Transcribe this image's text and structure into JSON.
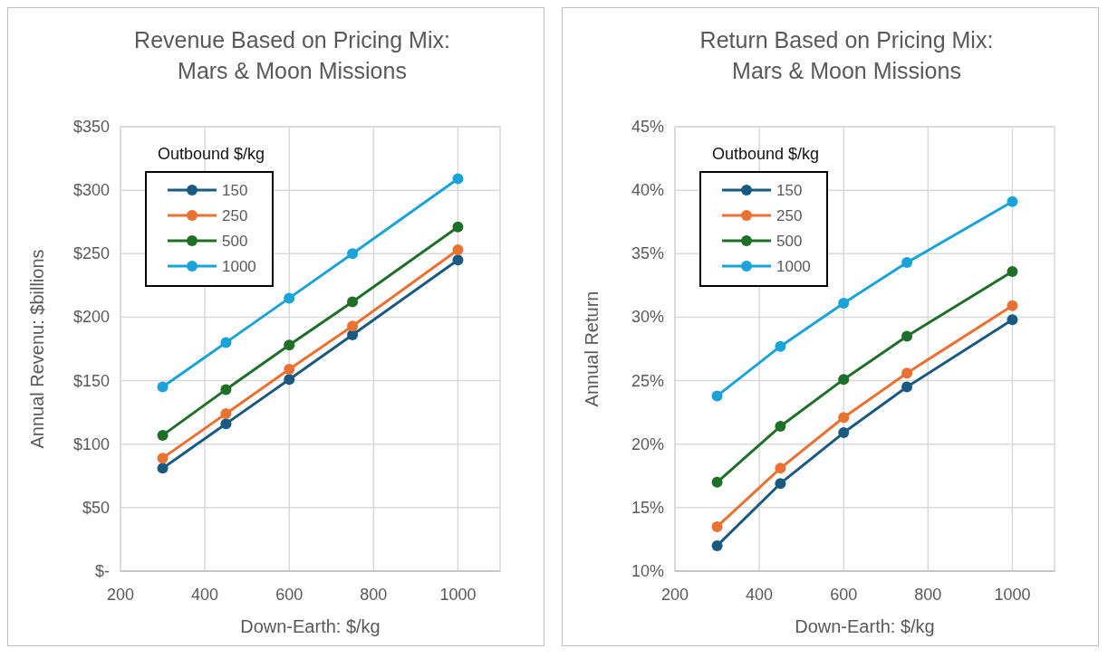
{
  "chart_data": [
    {
      "type": "line",
      "title": "Revenue Based on Pricing Mix:\nMars & Moon Missions",
      "xlabel": "Down-Earth: $/kg",
      "ylabel": "Annual Revenu: $billions",
      "legend_title": "Outbound $/kg",
      "legend": "top left",
      "grid": true,
      "marker": "circle",
      "x": [
        300,
        450,
        600,
        750,
        1000
      ],
      "xlim": [
        200,
        1100
      ],
      "xticks": [
        200,
        400,
        600,
        800,
        1000
      ],
      "ylim": [
        0,
        350
      ],
      "yticks": [
        {
          "value": 0,
          "label": "$-"
        },
        {
          "value": 50,
          "label": "$50"
        },
        {
          "value": 100,
          "label": "$100"
        },
        {
          "value": 150,
          "label": "$150"
        },
        {
          "value": 200,
          "label": "$200"
        },
        {
          "value": 250,
          "label": "$250"
        },
        {
          "value": 300,
          "label": "$300"
        },
        {
          "value": 350,
          "label": "$350"
        }
      ],
      "series": [
        {
          "name": "150",
          "color": "#1a5a80",
          "values": [
            81,
            116,
            151,
            186,
            245
          ]
        },
        {
          "name": "250",
          "color": "#e97132",
          "values": [
            89,
            124,
            159,
            193,
            253
          ]
        },
        {
          "name": "500",
          "color": "#1f6f28",
          "values": [
            107,
            143,
            178,
            212,
            271
          ]
        },
        {
          "name": "1000",
          "color": "#1aa3d9",
          "values": [
            145,
            180,
            215,
            250,
            309
          ]
        }
      ]
    },
    {
      "type": "line",
      "title": "Return Based on Pricing Mix:\nMars & Moon Missions",
      "xlabel": "Down-Earth: $/kg",
      "ylabel": "Annual Return",
      "legend_title": "Outbound $/kg",
      "legend": "top left",
      "grid": true,
      "marker": "circle",
      "x": [
        300,
        450,
        600,
        750,
        1000
      ],
      "xlim": [
        200,
        1100
      ],
      "xticks": [
        200,
        400,
        600,
        800,
        1000
      ],
      "ylim": [
        10,
        45
      ],
      "yticks": [
        {
          "value": 10,
          "label": "10%"
        },
        {
          "value": 15,
          "label": "15%"
        },
        {
          "value": 20,
          "label": "20%"
        },
        {
          "value": 25,
          "label": "25%"
        },
        {
          "value": 30,
          "label": "30%"
        },
        {
          "value": 35,
          "label": "35%"
        },
        {
          "value": 40,
          "label": "40%"
        },
        {
          "value": 45,
          "label": "45%"
        }
      ],
      "series": [
        {
          "name": "150",
          "color": "#1a5a80",
          "values": [
            12.0,
            16.9,
            20.9,
            24.5,
            29.8
          ]
        },
        {
          "name": "250",
          "color": "#e97132",
          "values": [
            13.5,
            18.1,
            22.1,
            25.6,
            30.9
          ]
        },
        {
          "name": "500",
          "color": "#1f6f28",
          "values": [
            17.0,
            21.4,
            25.1,
            28.5,
            33.6
          ]
        },
        {
          "name": "1000",
          "color": "#1aa3d9",
          "values": [
            23.8,
            27.7,
            31.1,
            34.3,
            39.1
          ]
        }
      ]
    }
  ]
}
